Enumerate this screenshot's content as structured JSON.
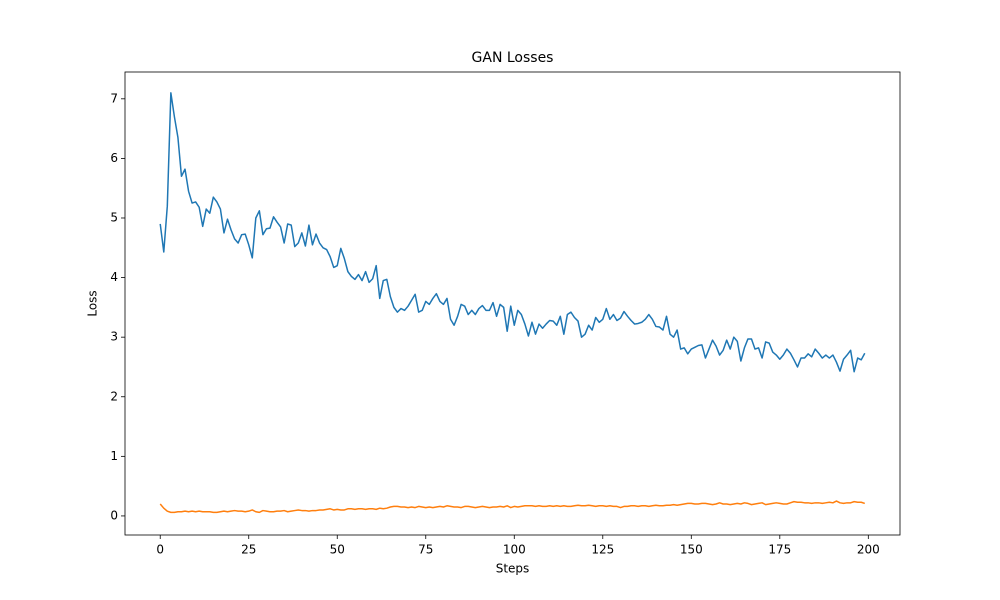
{
  "chart_data": {
    "type": "line",
    "title": "GAN Losses",
    "xlabel": "Steps",
    "ylabel": "Loss",
    "x": [
      0,
      1,
      2,
      3,
      4,
      5,
      6,
      7,
      8,
      9,
      10,
      11,
      12,
      13,
      14,
      15,
      16,
      17,
      18,
      19,
      20,
      21,
      22,
      23,
      24,
      25,
      26,
      27,
      28,
      29,
      30,
      31,
      32,
      33,
      34,
      35,
      36,
      37,
      38,
      39,
      40,
      41,
      42,
      43,
      44,
      45,
      46,
      47,
      48,
      49,
      50,
      51,
      52,
      53,
      54,
      55,
      56,
      57,
      58,
      59,
      60,
      61,
      62,
      63,
      64,
      65,
      66,
      67,
      68,
      69,
      70,
      71,
      72,
      73,
      74,
      75,
      76,
      77,
      78,
      79,
      80,
      81,
      82,
      83,
      84,
      85,
      86,
      87,
      88,
      89,
      90,
      91,
      92,
      93,
      94,
      95,
      96,
      97,
      98,
      99,
      100,
      101,
      102,
      103,
      104,
      105,
      106,
      107,
      108,
      109,
      110,
      111,
      112,
      113,
      114,
      115,
      116,
      117,
      118,
      119,
      120,
      121,
      122,
      123,
      124,
      125,
      126,
      127,
      128,
      129,
      130,
      131,
      132,
      133,
      134,
      135,
      136,
      137,
      138,
      139,
      140,
      141,
      142,
      143,
      144,
      145,
      146,
      147,
      148,
      149,
      150,
      151,
      152,
      153,
      154,
      155,
      156,
      157,
      158,
      159,
      160,
      161,
      162,
      163,
      164,
      165,
      166,
      167,
      168,
      169,
      170,
      171,
      172,
      173,
      174,
      175,
      176,
      177,
      178,
      179,
      180,
      181,
      182,
      183,
      184,
      185,
      186,
      187,
      188,
      189,
      190,
      191,
      192,
      193,
      194,
      195,
      196,
      197,
      198,
      199
    ],
    "series": [
      {
        "color": "#1f77b4",
        "values": [
          4.9,
          4.43,
          5.2,
          7.1,
          6.7,
          6.35,
          5.7,
          5.82,
          5.45,
          5.25,
          5.27,
          5.18,
          4.86,
          5.15,
          5.08,
          5.35,
          5.27,
          5.15,
          4.75,
          4.98,
          4.8,
          4.65,
          4.58,
          4.72,
          4.73,
          4.55,
          4.33,
          5.0,
          5.12,
          4.72,
          4.82,
          4.83,
          5.02,
          4.93,
          4.85,
          4.58,
          4.9,
          4.88,
          4.52,
          4.58,
          4.75,
          4.53,
          4.88,
          4.55,
          4.73,
          4.58,
          4.5,
          4.47,
          4.35,
          4.17,
          4.2,
          4.49,
          4.32,
          4.1,
          4.02,
          3.97,
          4.05,
          3.95,
          4.1,
          3.92,
          3.98,
          4.2,
          3.65,
          3.95,
          3.97,
          3.68,
          3.5,
          3.42,
          3.48,
          3.45,
          3.52,
          3.62,
          3.72,
          3.42,
          3.45,
          3.6,
          3.55,
          3.65,
          3.73,
          3.6,
          3.55,
          3.65,
          3.3,
          3.2,
          3.35,
          3.55,
          3.52,
          3.38,
          3.45,
          3.38,
          3.48,
          3.53,
          3.45,
          3.45,
          3.58,
          3.35,
          3.55,
          3.5,
          3.1,
          3.52,
          3.2,
          3.45,
          3.38,
          3.22,
          3.02,
          3.25,
          3.05,
          3.22,
          3.15,
          3.22,
          3.28,
          3.27,
          3.2,
          3.35,
          3.05,
          3.38,
          3.42,
          3.33,
          3.27,
          3.0,
          3.05,
          3.2,
          3.12,
          3.33,
          3.25,
          3.3,
          3.48,
          3.3,
          3.38,
          3.28,
          3.32,
          3.43,
          3.35,
          3.28,
          3.22,
          3.23,
          3.25,
          3.3,
          3.38,
          3.3,
          3.18,
          3.17,
          3.12,
          3.35,
          3.05,
          3.0,
          3.12,
          2.8,
          2.82,
          2.72,
          2.8,
          2.83,
          2.86,
          2.87,
          2.65,
          2.8,
          2.95,
          2.85,
          2.7,
          2.78,
          2.95,
          2.8,
          3.0,
          2.93,
          2.6,
          2.82,
          2.97,
          2.97,
          2.8,
          2.82,
          2.65,
          2.92,
          2.9,
          2.75,
          2.7,
          2.63,
          2.7,
          2.8,
          2.73,
          2.62,
          2.5,
          2.65,
          2.65,
          2.72,
          2.67,
          2.8,
          2.73,
          2.65,
          2.7,
          2.65,
          2.7,
          2.58,
          2.43,
          2.63,
          2.7,
          2.78,
          2.42,
          2.65,
          2.62,
          2.73
        ]
      },
      {
        "color": "#ff7f0e",
        "values": [
          0.2,
          0.13,
          0.08,
          0.06,
          0.06,
          0.07,
          0.07,
          0.08,
          0.07,
          0.08,
          0.07,
          0.08,
          0.07,
          0.07,
          0.07,
          0.06,
          0.06,
          0.07,
          0.08,
          0.07,
          0.08,
          0.09,
          0.08,
          0.08,
          0.07,
          0.08,
          0.1,
          0.07,
          0.06,
          0.09,
          0.08,
          0.07,
          0.07,
          0.08,
          0.08,
          0.09,
          0.07,
          0.08,
          0.09,
          0.1,
          0.09,
          0.09,
          0.08,
          0.09,
          0.09,
          0.1,
          0.1,
          0.11,
          0.12,
          0.1,
          0.11,
          0.1,
          0.1,
          0.12,
          0.12,
          0.11,
          0.12,
          0.12,
          0.11,
          0.12,
          0.12,
          0.11,
          0.13,
          0.12,
          0.13,
          0.15,
          0.16,
          0.16,
          0.15,
          0.15,
          0.14,
          0.15,
          0.14,
          0.16,
          0.15,
          0.14,
          0.15,
          0.14,
          0.15,
          0.16,
          0.15,
          0.17,
          0.16,
          0.15,
          0.15,
          0.14,
          0.16,
          0.16,
          0.15,
          0.14,
          0.15,
          0.16,
          0.15,
          0.14,
          0.15,
          0.15,
          0.16,
          0.15,
          0.17,
          0.14,
          0.16,
          0.15,
          0.16,
          0.17,
          0.17,
          0.17,
          0.16,
          0.17,
          0.16,
          0.16,
          0.17,
          0.16,
          0.17,
          0.16,
          0.17,
          0.16,
          0.16,
          0.17,
          0.18,
          0.17,
          0.17,
          0.18,
          0.17,
          0.16,
          0.17,
          0.17,
          0.16,
          0.17,
          0.16,
          0.16,
          0.14,
          0.16,
          0.16,
          0.17,
          0.17,
          0.16,
          0.17,
          0.17,
          0.16,
          0.17,
          0.18,
          0.17,
          0.17,
          0.18,
          0.18,
          0.19,
          0.18,
          0.19,
          0.2,
          0.21,
          0.21,
          0.2,
          0.2,
          0.21,
          0.21,
          0.2,
          0.19,
          0.2,
          0.22,
          0.2,
          0.2,
          0.19,
          0.2,
          0.21,
          0.2,
          0.22,
          0.21,
          0.19,
          0.2,
          0.21,
          0.22,
          0.19,
          0.2,
          0.21,
          0.22,
          0.21,
          0.2,
          0.2,
          0.22,
          0.24,
          0.23,
          0.23,
          0.22,
          0.22,
          0.21,
          0.22,
          0.22,
          0.21,
          0.22,
          0.23,
          0.22,
          0.25,
          0.22,
          0.21,
          0.22,
          0.22,
          0.24,
          0.23,
          0.23,
          0.21
        ]
      }
    ],
    "xlim": [
      -9.95,
      208.95
    ],
    "ylim": [
      -0.32,
      7.45
    ],
    "xticks": [
      0,
      25,
      50,
      75,
      100,
      125,
      150,
      175,
      200
    ],
    "yticks": [
      0,
      1,
      2,
      3,
      4,
      5,
      6,
      7
    ]
  }
}
